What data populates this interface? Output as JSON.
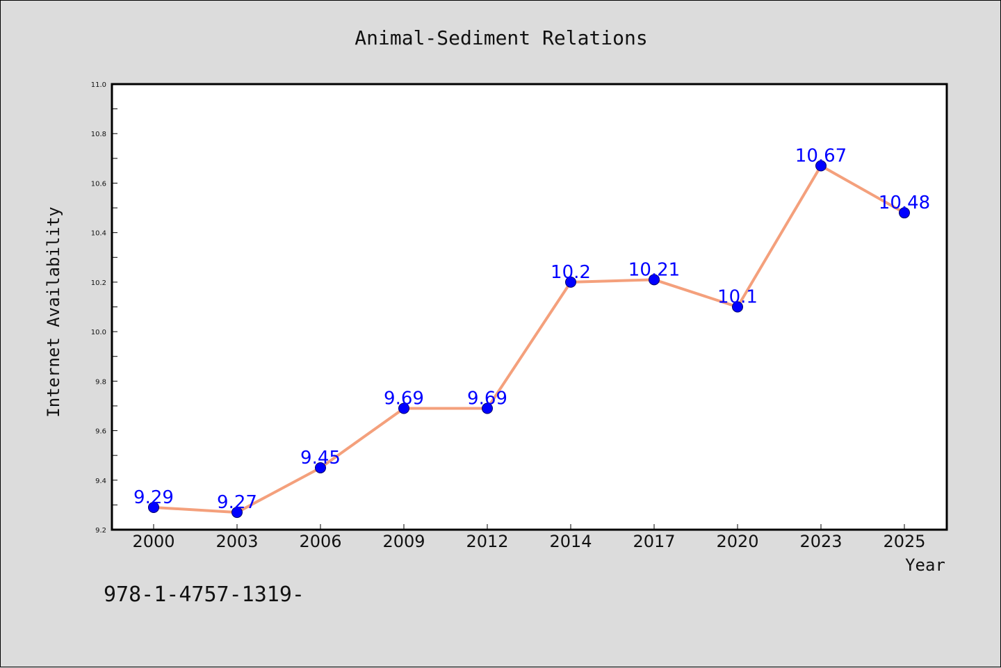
{
  "chart_data": {
    "type": "line",
    "title": "Animal-Sediment Relations",
    "xlabel": "Year",
    "ylabel": "Internet Availability",
    "categories": [
      "2000",
      "2003",
      "2006",
      "2009",
      "2012",
      "2014",
      "2017",
      "2020",
      "2023",
      "2025"
    ],
    "series": [
      {
        "values": [
          9.29,
          9.27,
          9.45,
          9.69,
          9.69,
          10.2,
          10.21,
          10.1,
          10.67,
          10.48
        ],
        "line_color": "#f4a07c",
        "marker_color": "#0000ff"
      }
    ],
    "data_labels": [
      "9.29",
      "9.27",
      "9.45",
      "9.69",
      "9.69",
      "10.2",
      "10.21",
      "10.1",
      "10.67",
      "10.48"
    ],
    "ylim": [
      9.2,
      11.0
    ],
    "yticks": [
      "9.2",
      "9.4",
      "9.6",
      "9.8",
      "10.0",
      "10.2",
      "10.4",
      "10.6",
      "10.8",
      "11.0"
    ],
    "grid": false
  },
  "footnote": "978-1-4757-1319-"
}
